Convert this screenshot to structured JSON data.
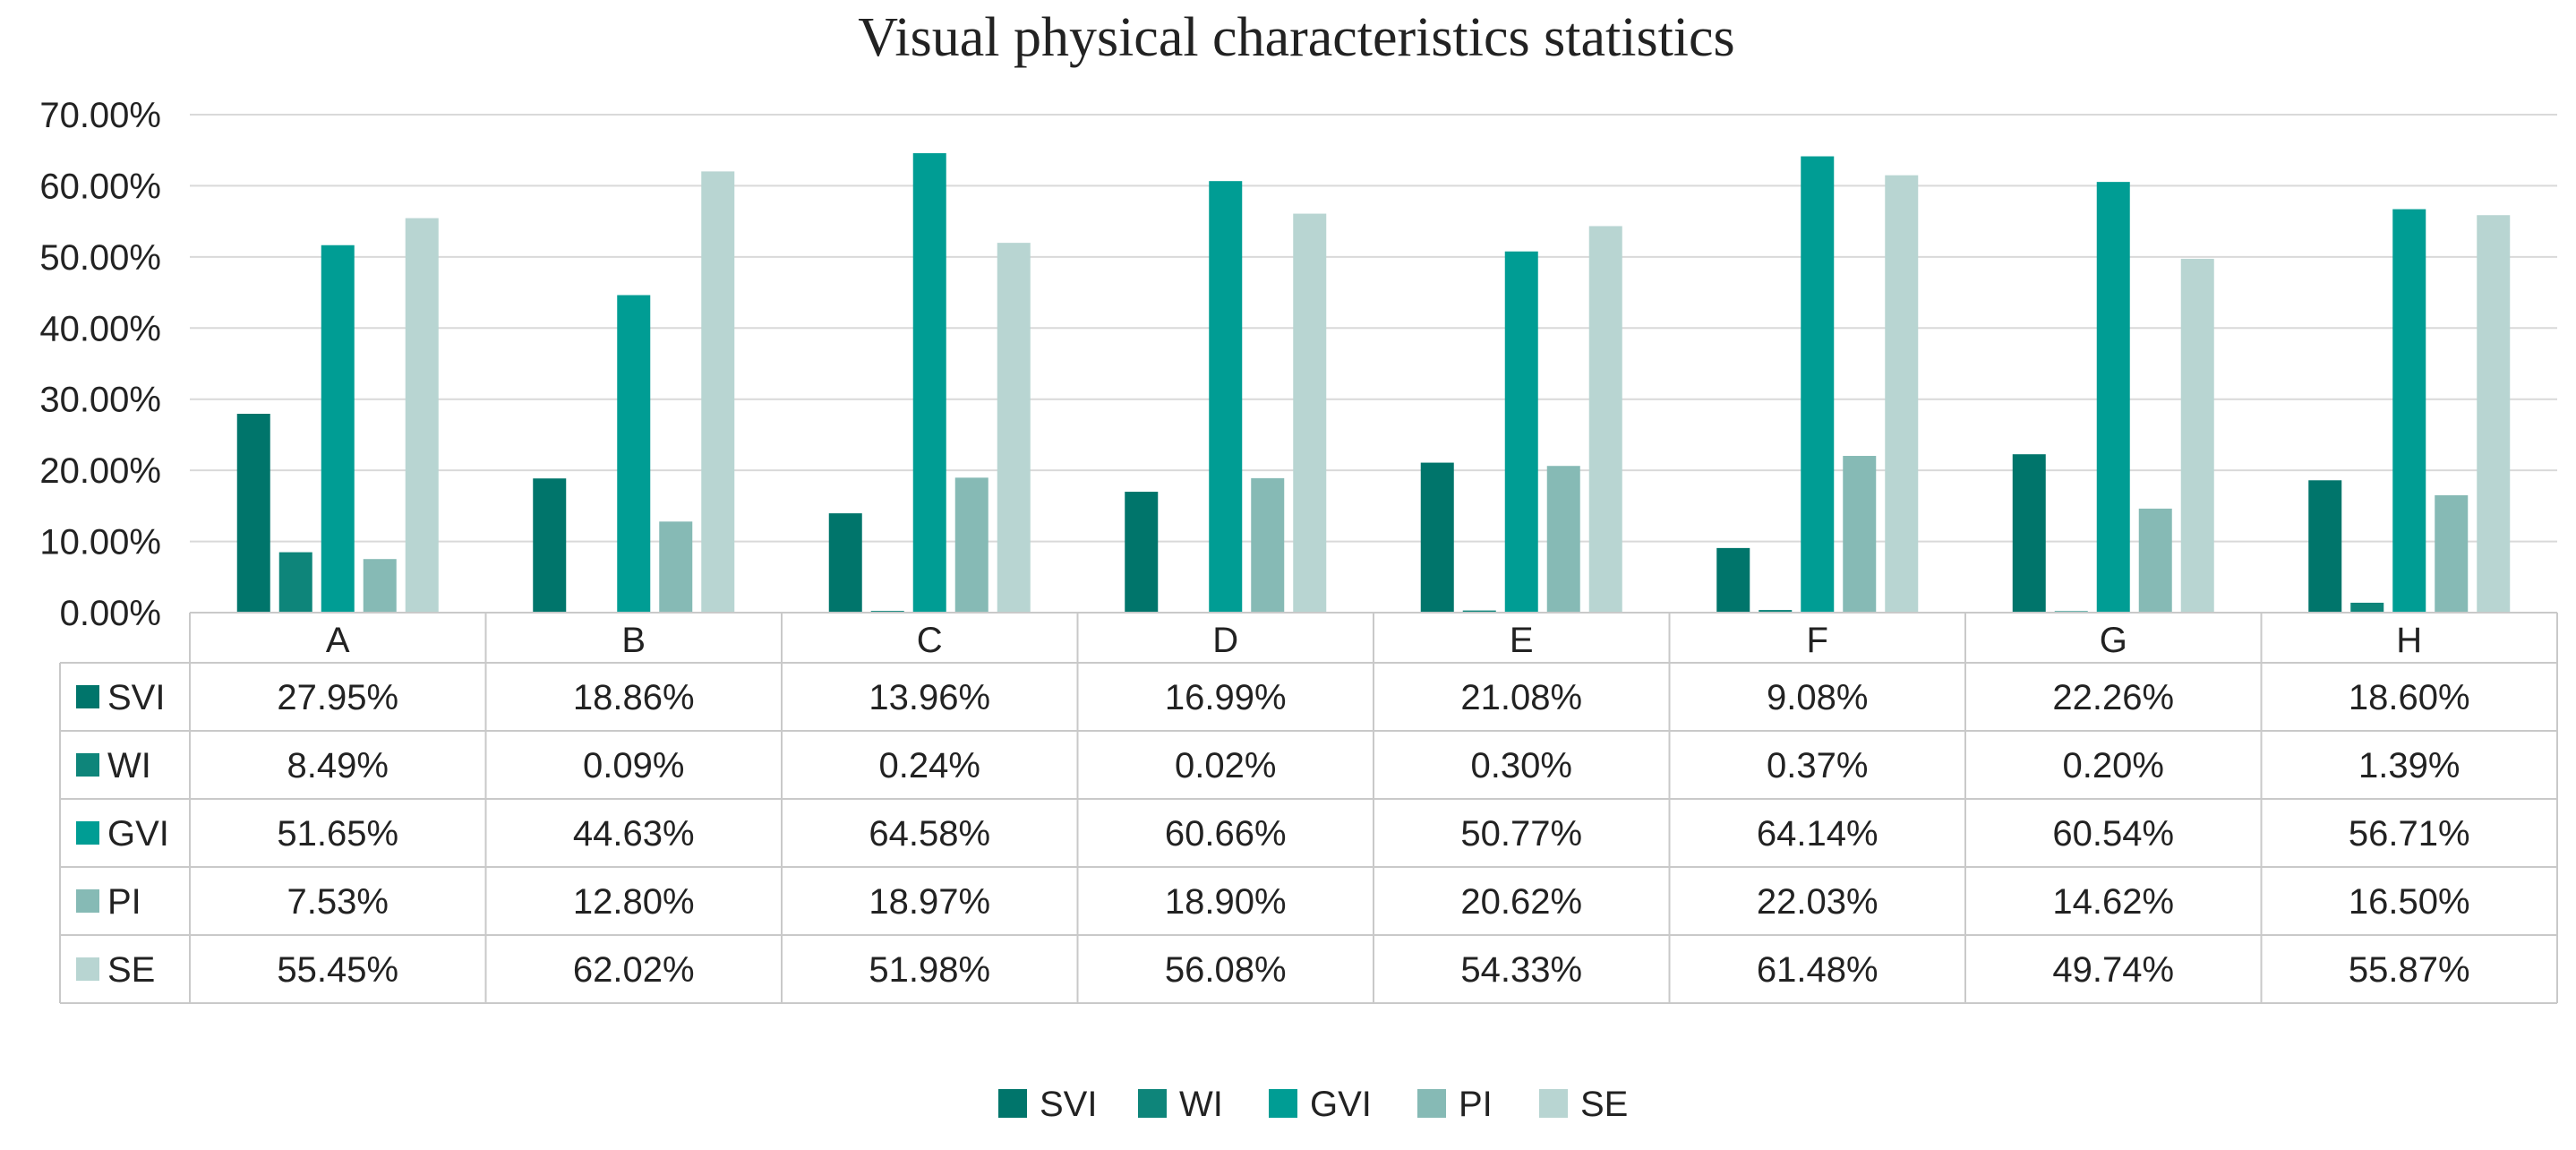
{
  "chart_data": {
    "type": "bar",
    "title": "Visual physical characteristics statistics",
    "xlabel": "",
    "ylabel": "",
    "ylim": [
      0,
      70
    ],
    "y_ticks": [
      "0.00%",
      "10.00%",
      "20.00%",
      "30.00%",
      "40.00%",
      "50.00%",
      "60.00%",
      "70.00%"
    ],
    "y_tick_values": [
      0,
      10,
      20,
      30,
      40,
      50,
      60,
      70
    ],
    "categories": [
      "A",
      "B",
      "C",
      "D",
      "E",
      "F",
      "G",
      "H"
    ],
    "grid": true,
    "legend_position": "bottom",
    "series": [
      {
        "name": "SVI",
        "color": "#00756b",
        "values": [
          27.95,
          18.86,
          13.96,
          16.99,
          21.08,
          9.08,
          22.26,
          18.6
        ],
        "labels": [
          "27.95%",
          "18.86%",
          "13.96%",
          "16.99%",
          "21.08%",
          "9.08%",
          "22.26%",
          "18.60%"
        ]
      },
      {
        "name": "WI",
        "color": "#0e857a",
        "values": [
          8.49,
          0.09,
          0.24,
          0.02,
          0.3,
          0.37,
          0.2,
          1.39
        ],
        "labels": [
          "8.49%",
          "0.09%",
          "0.24%",
          "0.02%",
          "0.30%",
          "0.37%",
          "0.20%",
          "1.39%"
        ]
      },
      {
        "name": "GVI",
        "color": "#009d94",
        "values": [
          51.65,
          44.63,
          64.58,
          60.66,
          50.77,
          64.14,
          60.54,
          56.71
        ],
        "labels": [
          "51.65%",
          "44.63%",
          "64.58%",
          "60.66%",
          "50.77%",
          "64.14%",
          "60.54%",
          "56.71%"
        ]
      },
      {
        "name": "PI",
        "color": "#86bab5",
        "values": [
          7.53,
          12.8,
          18.97,
          18.9,
          20.62,
          22.03,
          14.62,
          16.5
        ],
        "labels": [
          "7.53%",
          "12.80%",
          "18.97%",
          "18.90%",
          "20.62%",
          "22.03%",
          "14.62%",
          "16.50%"
        ]
      },
      {
        "name": "SE",
        "color": "#b8d5d2",
        "values": [
          55.45,
          62.02,
          51.98,
          56.08,
          54.33,
          61.48,
          49.74,
          55.87
        ],
        "labels": [
          "55.45%",
          "62.02%",
          "51.98%",
          "56.08%",
          "54.33%",
          "61.48%",
          "49.74%",
          "55.87%"
        ]
      }
    ]
  }
}
